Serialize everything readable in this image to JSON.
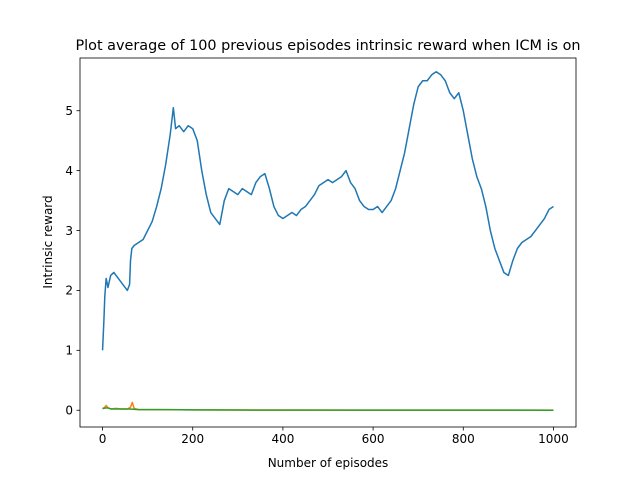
{
  "chart_data": {
    "type": "line",
    "title": "Plot average of 100 previous episodes intrinsic reward when ICM is on",
    "xlabel": "Number of episodes",
    "ylabel": "Intrinsic reward",
    "xlim": [
      -50,
      1050
    ],
    "ylim": [
      -0.28,
      5.88
    ],
    "xticks": [
      0,
      200,
      400,
      600,
      800,
      1000
    ],
    "yticks": [
      0,
      1,
      2,
      3,
      4,
      5
    ],
    "grid": false,
    "legend": "none",
    "series": [
      {
        "color": "#1f77b4",
        "points": [
          [
            0,
            1.0
          ],
          [
            3,
            1.5
          ],
          [
            5,
            1.9
          ],
          [
            8,
            2.2
          ],
          [
            12,
            2.05
          ],
          [
            18,
            2.25
          ],
          [
            25,
            2.3
          ],
          [
            35,
            2.2
          ],
          [
            45,
            2.1
          ],
          [
            55,
            2.0
          ],
          [
            60,
            2.1
          ],
          [
            62,
            2.5
          ],
          [
            65,
            2.7
          ],
          [
            70,
            2.75
          ],
          [
            80,
            2.8
          ],
          [
            90,
            2.85
          ],
          [
            100,
            3.0
          ],
          [
            110,
            3.15
          ],
          [
            120,
            3.4
          ],
          [
            130,
            3.7
          ],
          [
            140,
            4.1
          ],
          [
            150,
            4.6
          ],
          [
            157,
            5.05
          ],
          [
            162,
            4.7
          ],
          [
            170,
            4.75
          ],
          [
            180,
            4.65
          ],
          [
            190,
            4.75
          ],
          [
            200,
            4.7
          ],
          [
            210,
            4.5
          ],
          [
            220,
            4.0
          ],
          [
            230,
            3.6
          ],
          [
            240,
            3.3
          ],
          [
            250,
            3.2
          ],
          [
            260,
            3.1
          ],
          [
            270,
            3.5
          ],
          [
            280,
            3.7
          ],
          [
            290,
            3.65
          ],
          [
            300,
            3.6
          ],
          [
            310,
            3.7
          ],
          [
            320,
            3.65
          ],
          [
            330,
            3.6
          ],
          [
            340,
            3.8
          ],
          [
            350,
            3.9
          ],
          [
            360,
            3.95
          ],
          [
            370,
            3.7
          ],
          [
            380,
            3.4
          ],
          [
            390,
            3.25
          ],
          [
            400,
            3.2
          ],
          [
            410,
            3.25
          ],
          [
            420,
            3.3
          ],
          [
            430,
            3.25
          ],
          [
            440,
            3.35
          ],
          [
            450,
            3.4
          ],
          [
            460,
            3.5
          ],
          [
            470,
            3.6
          ],
          [
            480,
            3.75
          ],
          [
            490,
            3.8
          ],
          [
            500,
            3.85
          ],
          [
            510,
            3.8
          ],
          [
            520,
            3.85
          ],
          [
            530,
            3.9
          ],
          [
            540,
            4.0
          ],
          [
            550,
            3.8
          ],
          [
            560,
            3.7
          ],
          [
            570,
            3.5
          ],
          [
            580,
            3.4
          ],
          [
            590,
            3.35
          ],
          [
            600,
            3.35
          ],
          [
            610,
            3.4
          ],
          [
            620,
            3.3
          ],
          [
            630,
            3.4
          ],
          [
            640,
            3.5
          ],
          [
            650,
            3.7
          ],
          [
            660,
            4.0
          ],
          [
            670,
            4.3
          ],
          [
            680,
            4.7
          ],
          [
            690,
            5.1
          ],
          [
            700,
            5.4
          ],
          [
            710,
            5.5
          ],
          [
            720,
            5.5
          ],
          [
            730,
            5.6
          ],
          [
            740,
            5.65
          ],
          [
            750,
            5.6
          ],
          [
            760,
            5.5
          ],
          [
            770,
            5.3
          ],
          [
            780,
            5.2
          ],
          [
            790,
            5.3
          ],
          [
            800,
            5.0
          ],
          [
            810,
            4.6
          ],
          [
            820,
            4.2
          ],
          [
            830,
            3.9
          ],
          [
            840,
            3.7
          ],
          [
            850,
            3.4
          ],
          [
            860,
            3.0
          ],
          [
            870,
            2.7
          ],
          [
            880,
            2.5
          ],
          [
            890,
            2.3
          ],
          [
            900,
            2.25
          ],
          [
            910,
            2.5
          ],
          [
            920,
            2.7
          ],
          [
            930,
            2.8
          ],
          [
            940,
            2.85
          ],
          [
            950,
            2.9
          ],
          [
            960,
            3.0
          ],
          [
            970,
            3.1
          ],
          [
            980,
            3.2
          ],
          [
            990,
            3.35
          ],
          [
            1000,
            3.4
          ]
        ]
      },
      {
        "color": "#ff7f0e",
        "points": [
          [
            0,
            0.02
          ],
          [
            5,
            0.05
          ],
          [
            8,
            0.08
          ],
          [
            12,
            0.04
          ],
          [
            20,
            0.02
          ],
          [
            30,
            0.03
          ],
          [
            40,
            0.02
          ],
          [
            55,
            0.02
          ],
          [
            62,
            0.05
          ],
          [
            66,
            0.13
          ],
          [
            70,
            0.03
          ],
          [
            80,
            0.01
          ],
          [
            120,
            0.01
          ],
          [
            200,
            0.005
          ],
          [
            400,
            0.003
          ],
          [
            600,
            0.002
          ],
          [
            800,
            0.002
          ],
          [
            1000,
            0.001
          ]
        ]
      },
      {
        "color": "#2ca02c",
        "points": [
          [
            0,
            0.03
          ],
          [
            10,
            0.04
          ],
          [
            20,
            0.02
          ],
          [
            40,
            0.02
          ],
          [
            60,
            0.02
          ],
          [
            80,
            0.01
          ],
          [
            100,
            0.01
          ],
          [
            150,
            0.01
          ],
          [
            200,
            0.005
          ],
          [
            300,
            0.003
          ],
          [
            400,
            0.002
          ],
          [
            500,
            0.002
          ],
          [
            600,
            0.002
          ],
          [
            700,
            0.001
          ],
          [
            800,
            0.001
          ],
          [
            900,
            0.001
          ],
          [
            1000,
            0.0
          ]
        ]
      }
    ]
  }
}
